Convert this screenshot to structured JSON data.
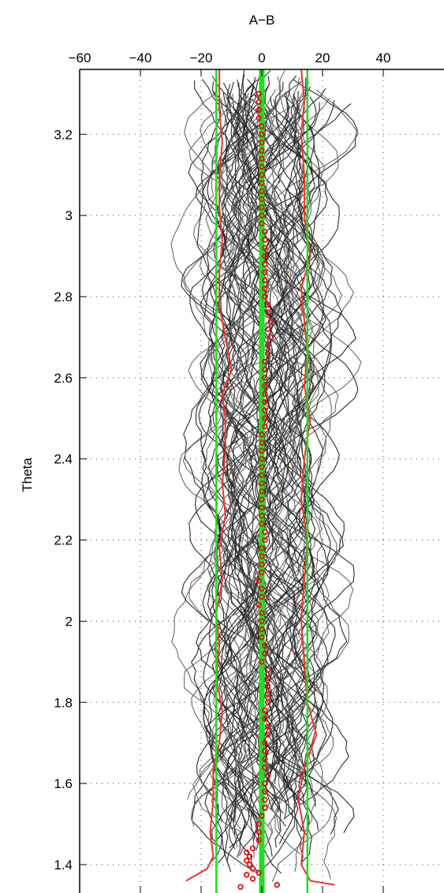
{
  "chart_data": {
    "type": "line",
    "title": "",
    "xlabel": "A−B",
    "ylabel": "Theta",
    "xlim": [
      -60,
      60
    ],
    "ylim": [
      1.33,
      3.36
    ],
    "x_ticks": [
      -60,
      -40,
      -20,
      0,
      20,
      40
    ],
    "x_tick_labels": [
      "−60",
      "−40",
      "−20",
      "0",
      "20",
      "40"
    ],
    "y_ticks": [
      1.4,
      1.6,
      1.8,
      2.0,
      2.2,
      2.4,
      2.6,
      2.8,
      3.0,
      3.2
    ],
    "y_tick_labels": [
      "1.4",
      "1.6",
      "1.8",
      "2",
      "2.2",
      "2.4",
      "2.6",
      "2.8",
      "3",
      "3.2"
    ],
    "x_axis_position": "top",
    "grid": "dotted",
    "colors": {
      "individual_profiles": "#2a2a2a",
      "individual_profiles_light": "#6a6a6a",
      "red_envelope": "#ee3333",
      "green_lines": "#22dd22",
      "red_markers": "#dd1111"
    },
    "series": [
      {
        "style": "red-line",
        "points": [
          [
            -25,
            1.36
          ],
          [
            -18,
            1.39
          ],
          [
            -16,
            1.42
          ],
          [
            -17,
            1.48
          ],
          [
            -16,
            1.56
          ],
          [
            -16,
            1.64
          ],
          [
            -14,
            1.7
          ],
          [
            -13,
            1.78
          ],
          [
            -15,
            1.86
          ],
          [
            -14,
            1.94
          ],
          [
            -15,
            2.02
          ],
          [
            -13,
            2.1
          ],
          [
            -14,
            2.18
          ],
          [
            -12,
            2.26
          ],
          [
            -13,
            2.34
          ],
          [
            -12,
            2.42
          ],
          [
            -12,
            2.5
          ],
          [
            -13,
            2.56
          ],
          [
            -10,
            2.62
          ],
          [
            -12,
            2.7
          ],
          [
            -14,
            2.78
          ],
          [
            -14,
            2.86
          ],
          [
            -13,
            2.94
          ],
          [
            -14,
            3.02
          ],
          [
            -14,
            3.1
          ],
          [
            -13,
            3.18
          ],
          [
            -14,
            3.26
          ],
          [
            -14,
            3.36
          ]
        ]
      },
      {
        "style": "red-line",
        "points": [
          [
            24,
            1.35
          ],
          [
            16,
            1.36
          ],
          [
            13,
            1.4
          ],
          [
            14,
            1.48
          ],
          [
            12,
            1.56
          ],
          [
            14,
            1.64
          ],
          [
            18,
            1.72
          ],
          [
            15,
            1.8
          ],
          [
            14,
            1.9
          ],
          [
            13,
            2.0
          ],
          [
            14,
            2.1
          ],
          [
            15,
            2.2
          ],
          [
            13,
            2.3
          ],
          [
            14,
            2.4
          ],
          [
            16,
            2.5
          ],
          [
            14,
            2.58
          ],
          [
            15,
            2.66
          ],
          [
            14,
            2.74
          ],
          [
            13,
            2.82
          ],
          [
            16,
            2.9
          ],
          [
            14,
            3.0
          ],
          [
            14,
            3.1
          ],
          [
            13,
            3.2
          ],
          [
            14,
            3.28
          ],
          [
            13,
            3.36
          ]
        ]
      },
      {
        "style": "green-line",
        "points": [
          [
            -15,
            1.33
          ],
          [
            -15,
            3.36
          ]
        ]
      },
      {
        "style": "green-line",
        "points": [
          [
            15,
            1.33
          ],
          [
            15,
            3.36
          ]
        ]
      },
      {
        "style": "green-line-thick",
        "points": [
          [
            0,
            1.33
          ],
          [
            0,
            3.36
          ]
        ]
      },
      {
        "style": "red-markers",
        "points": [
          [
            5,
            1.35
          ],
          [
            -7,
            1.345
          ],
          [
            -3,
            1.365
          ],
          [
            -5,
            1.375
          ],
          [
            -1,
            1.38
          ],
          [
            -3,
            1.39
          ],
          [
            -4,
            1.4
          ],
          [
            -5,
            1.41
          ],
          [
            -4,
            1.42
          ],
          [
            -5,
            1.43
          ],
          [
            -3,
            1.44
          ],
          [
            -1,
            1.46
          ],
          [
            -1,
            1.48
          ],
          [
            -1,
            1.5
          ],
          [
            0,
            1.52
          ],
          [
            1,
            1.54
          ],
          [
            1,
            1.56
          ],
          [
            1,
            1.58
          ],
          [
            1,
            1.6
          ],
          [
            2,
            1.62
          ],
          [
            1,
            1.64
          ],
          [
            1,
            1.66
          ],
          [
            1,
            1.68
          ],
          [
            1,
            1.7
          ],
          [
            2,
            1.72
          ],
          [
            2,
            1.74
          ],
          [
            1,
            1.76
          ],
          [
            1,
            1.78
          ],
          [
            2,
            1.8
          ],
          [
            2,
            1.82
          ],
          [
            2,
            1.84
          ],
          [
            2,
            1.86
          ],
          [
            2,
            1.88
          ],
          [
            0,
            1.9
          ],
          [
            1,
            1.92
          ],
          [
            1,
            1.94
          ],
          [
            0,
            1.96
          ],
          [
            0,
            1.98
          ],
          [
            0,
            2.0
          ],
          [
            0,
            2.02
          ],
          [
            -1,
            2.04
          ],
          [
            0,
            2.06
          ],
          [
            0,
            2.08
          ],
          [
            -1,
            2.1
          ],
          [
            0,
            2.12
          ],
          [
            0,
            2.14
          ],
          [
            0,
            2.16
          ],
          [
            0,
            2.18
          ],
          [
            1,
            2.2
          ],
          [
            1,
            2.22
          ],
          [
            0,
            2.24
          ],
          [
            0,
            2.26
          ],
          [
            0,
            2.28
          ],
          [
            0,
            2.3
          ],
          [
            0,
            2.32
          ],
          [
            0,
            2.34
          ],
          [
            0,
            2.36
          ],
          [
            0,
            2.38
          ],
          [
            0,
            2.4
          ],
          [
            0,
            2.42
          ],
          [
            0,
            2.44
          ],
          [
            0,
            2.46
          ],
          [
            1,
            2.48
          ],
          [
            1,
            2.5
          ],
          [
            1,
            2.52
          ],
          [
            1,
            2.54
          ],
          [
            1,
            2.56
          ],
          [
            1,
            2.58
          ],
          [
            1,
            2.6
          ],
          [
            1,
            2.62
          ],
          [
            1,
            2.64
          ],
          [
            2,
            2.66
          ],
          [
            2,
            2.68
          ],
          [
            3,
            2.7
          ],
          [
            2,
            2.72
          ],
          [
            3,
            2.74
          ],
          [
            2,
            2.76
          ],
          [
            2,
            2.78
          ],
          [
            1,
            2.8
          ],
          [
            1,
            2.82
          ],
          [
            1,
            2.84
          ],
          [
            1,
            2.86
          ],
          [
            1,
            2.88
          ],
          [
            1,
            2.9
          ],
          [
            1,
            2.92
          ],
          [
            1,
            2.94
          ],
          [
            1,
            2.96
          ],
          [
            0,
            2.98
          ],
          [
            0,
            3.0
          ],
          [
            0,
            3.02
          ],
          [
            0,
            3.04
          ],
          [
            0,
            3.06
          ],
          [
            0,
            3.08
          ],
          [
            0,
            3.1
          ],
          [
            0,
            3.12
          ],
          [
            0,
            3.14
          ],
          [
            0,
            3.16
          ],
          [
            0,
            3.18
          ],
          [
            0,
            3.2
          ],
          [
            0,
            3.22
          ],
          [
            -1,
            3.24
          ],
          [
            -1,
            3.26
          ],
          [
            -1,
            3.28
          ],
          [
            -1,
            3.3
          ]
        ]
      }
    ],
    "profile_count": 80,
    "profile_spread": 15
  }
}
